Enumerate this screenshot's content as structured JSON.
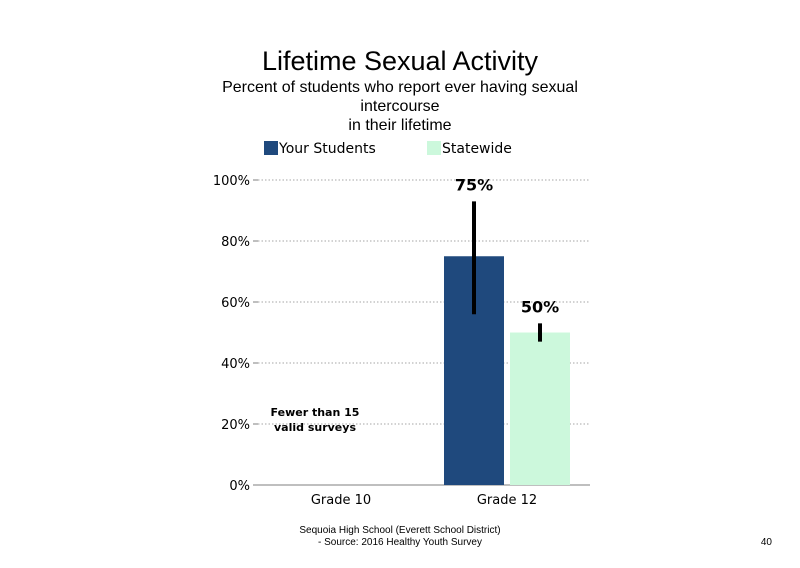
{
  "chart_data": {
    "type": "bar",
    "title": "Lifetime Sexual Activity",
    "subtitle_lines": [
      "Percent of students  who report ever having sexual",
      "intercourse",
      "in their lifetime"
    ],
    "categories": [
      "Grade 10",
      "Grade 12"
    ],
    "series": [
      {
        "name": "Your Students",
        "color": "#1f497d",
        "values": [
          null,
          75
        ],
        "error_low": [
          null,
          56
        ],
        "error_high": [
          null,
          93
        ],
        "labels": [
          "",
          "75%"
        ]
      },
      {
        "name": "Statewide",
        "color": "#ccf8dc",
        "values": [
          null,
          50
        ],
        "error_low": [
          null,
          47
        ],
        "error_high": [
          null,
          53
        ],
        "labels": [
          "",
          "50%"
        ]
      }
    ],
    "ylim": [
      0,
      100
    ],
    "yticks": [
      0,
      20,
      40,
      60,
      80,
      100
    ],
    "ytick_labels": [
      "0%",
      "20%",
      "40%",
      "60%",
      "80%",
      "100%"
    ],
    "grid": true,
    "legend_position": "top",
    "annotations": [
      {
        "category": "Grade 10",
        "lines": [
          "Fewer than 15",
          "valid surveys"
        ]
      }
    ]
  },
  "footer": {
    "line1": "Sequoia High  School (Everett School District)",
    "line2": "- Source: 2016 Healthy  Youth Survey"
  },
  "page_number": "40"
}
